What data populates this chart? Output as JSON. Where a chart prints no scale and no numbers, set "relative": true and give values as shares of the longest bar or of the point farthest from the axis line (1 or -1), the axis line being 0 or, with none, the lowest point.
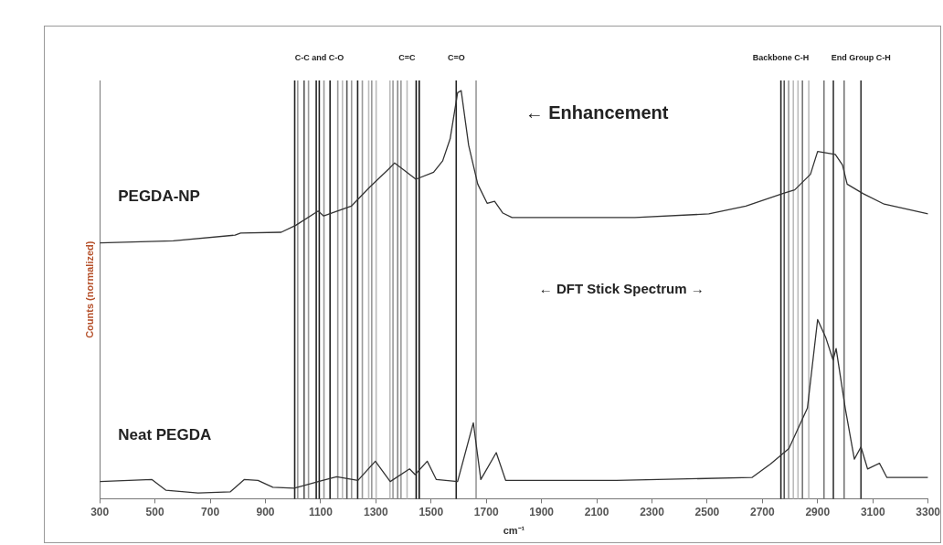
{
  "chart_data": {
    "type": "line",
    "relative": true,
    "xlabel": "cm⁻¹",
    "ylabel": "Counts (normalized)",
    "xlim": [
      300,
      3300
    ],
    "xticks": [
      300,
      500,
      700,
      900,
      1100,
      1300,
      1500,
      1700,
      1900,
      2100,
      2300,
      2500,
      2700,
      2900,
      3100,
      3300
    ],
    "tick_labels": "x",
    "grid": false,
    "marker": "none",
    "line_style": "solid",
    "series": [
      {
        "name": "PEGDA-NP",
        "color": "#333333",
        "x": [
          300,
          566,
          790,
          810,
          957,
          1010,
          1091,
          1111,
          1211,
          1278,
          1345,
          1368,
          1445,
          1509,
          1542,
          1569,
          1596,
          1609,
          1636,
          1669,
          1703,
          1730,
          1760,
          1793,
          2238,
          2506,
          2640,
          2774,
          2817,
          2874,
          2900,
          2964,
          2990,
          3007,
          3064,
          3141,
          3300
        ],
        "values": [
          0.627,
          0.632,
          0.646,
          0.651,
          0.653,
          0.67,
          0.705,
          0.693,
          0.717,
          0.764,
          0.807,
          0.823,
          0.783,
          0.8,
          0.828,
          0.882,
          0.995,
          1.0,
          0.866,
          0.771,
          0.724,
          0.729,
          0.7,
          0.689,
          0.689,
          0.698,
          0.717,
          0.748,
          0.757,
          0.795,
          0.851,
          0.844,
          0.818,
          0.771,
          0.748,
          0.722,
          0.698
        ]
      },
      {
        "name": "Neat PEGDA",
        "color": "#333333",
        "x": [
          300,
          489,
          539,
          656,
          773,
          823,
          873,
          927,
          1004,
          1107,
          1158,
          1235,
          1298,
          1352,
          1422,
          1442,
          1486,
          1519,
          1596,
          1653,
          1680,
          1736,
          1770,
          2171,
          2662,
          2729,
          2796,
          2863,
          2900,
          2930,
          2956,
          2967,
          3000,
          3033,
          3057,
          3081,
          3124,
          3151,
          3300
        ],
        "values": [
          0.042,
          0.047,
          0.021,
          0.014,
          0.017,
          0.047,
          0.045,
          0.028,
          0.026,
          0.045,
          0.054,
          0.045,
          0.092,
          0.042,
          0.073,
          0.059,
          0.092,
          0.047,
          0.042,
          0.186,
          0.047,
          0.113,
          0.045,
          0.045,
          0.052,
          0.085,
          0.123,
          0.222,
          0.439,
          0.394,
          0.34,
          0.368,
          0.222,
          0.097,
          0.127,
          0.073,
          0.087,
          0.052,
          0.052
        ]
      }
    ],
    "ref_lines": [
      {
        "axis": "x",
        "value": 1006,
        "color": "#222222"
      },
      {
        "axis": "x",
        "value": 1017,
        "color": "#999999"
      },
      {
        "axis": "x",
        "value": 1040,
        "color": "#555555"
      },
      {
        "axis": "x",
        "value": 1056,
        "color": "#999999"
      },
      {
        "axis": "x",
        "value": 1084,
        "color": "#222222"
      },
      {
        "axis": "x",
        "value": 1095,
        "color": "#222222",
        "label": "C-C and C-O"
      },
      {
        "axis": "x",
        "value": 1112,
        "color": "#999999"
      },
      {
        "axis": "x",
        "value": 1134,
        "color": "#222222"
      },
      {
        "axis": "x",
        "value": 1162,
        "color": "#999999"
      },
      {
        "axis": "x",
        "value": 1179,
        "color": "#bbbbbb"
      },
      {
        "axis": "x",
        "value": 1195,
        "color": "#555555"
      },
      {
        "axis": "x",
        "value": 1212,
        "color": "#999999"
      },
      {
        "axis": "x",
        "value": 1234,
        "color": "#222222"
      },
      {
        "axis": "x",
        "value": 1251,
        "color": "#999999"
      },
      {
        "axis": "x",
        "value": 1274,
        "color": "#bbbbbb"
      },
      {
        "axis": "x",
        "value": 1285,
        "color": "#999999"
      },
      {
        "axis": "x",
        "value": 1301,
        "color": "#bbbbbb"
      },
      {
        "axis": "x",
        "value": 1351,
        "color": "#bbbbbb"
      },
      {
        "axis": "x",
        "value": 1362,
        "color": "#999999"
      },
      {
        "axis": "x",
        "value": 1379,
        "color": "#888888"
      },
      {
        "axis": "x",
        "value": 1391,
        "color": "#999999"
      },
      {
        "axis": "x",
        "value": 1413,
        "color": "#bbbbbb",
        "label": "C=C"
      },
      {
        "axis": "x",
        "value": 1446,
        "color": "#111111"
      },
      {
        "axis": "x",
        "value": 1457,
        "color": "#111111"
      },
      {
        "axis": "x",
        "value": 1591,
        "color": "#222222",
        "label": "C=O"
      },
      {
        "axis": "x",
        "value": 1663,
        "color": "#999999"
      },
      {
        "axis": "x",
        "value": 2767,
        "color": "#222222",
        "label": "Backbone C-H"
      },
      {
        "axis": "x",
        "value": 2779,
        "color": "#555555"
      },
      {
        "axis": "x",
        "value": 2795,
        "color": "#999999"
      },
      {
        "axis": "x",
        "value": 2812,
        "color": "#bbbbbb"
      },
      {
        "axis": "x",
        "value": 2829,
        "color": "#bbbbbb"
      },
      {
        "axis": "x",
        "value": 2845,
        "color": "#777777"
      },
      {
        "axis": "x",
        "value": 2868,
        "color": "#bbbbbb"
      },
      {
        "axis": "x",
        "value": 2923,
        "color": "#777777"
      },
      {
        "axis": "x",
        "value": 2957,
        "color": "#333333"
      },
      {
        "axis": "x",
        "value": 2996,
        "color": "#777777"
      },
      {
        "axis": "x",
        "value": 3057,
        "color": "#333333",
        "label": "End Group C-H"
      }
    ],
    "annotations": [
      "← Enhancement",
      "← DFT Stick Spectrum →"
    ]
  }
}
